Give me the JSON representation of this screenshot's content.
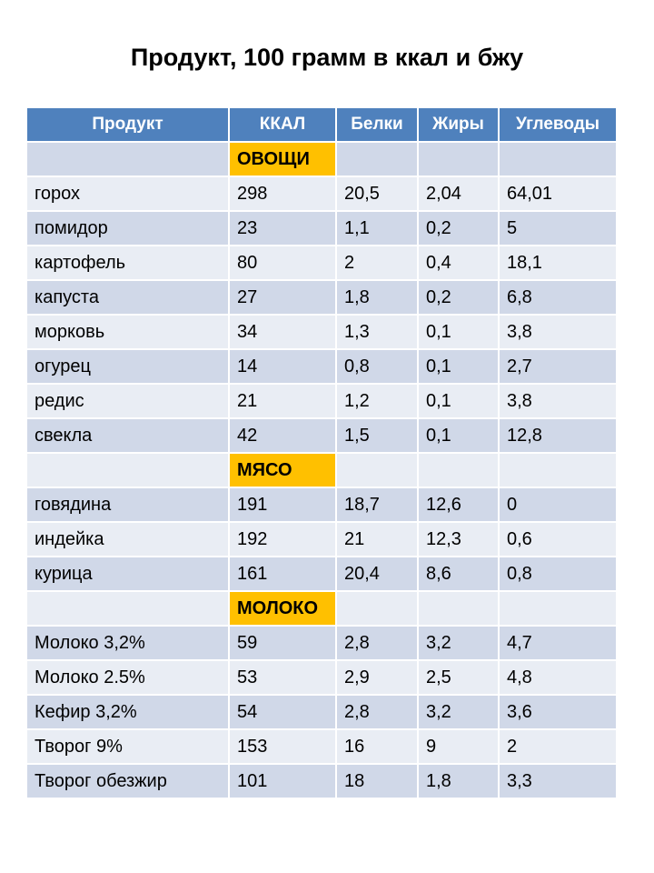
{
  "title": "Продукт, 100 грамм в ккал и бжу",
  "columns": [
    "Продукт",
    "ККАЛ",
    "Белки",
    "Жиры",
    "Углеводы"
  ],
  "colors": {
    "header_bg": "#4f81bd",
    "header_text": "#ffffff",
    "row_band_dark": "#d0d8e8",
    "row_band_light": "#e9edf4",
    "section_highlight": "#ffc000"
  },
  "sections": [
    {
      "label": "ОВОЩИ",
      "rows": [
        [
          "горох",
          "298",
          "20,5",
          "2,04",
          "64,01"
        ],
        [
          "помидор",
          "23",
          "1,1",
          "0,2",
          "5"
        ],
        [
          "картофель",
          "80",
          "2",
          "0,4",
          "18,1"
        ],
        [
          "капуста",
          "27",
          "1,8",
          "0,2",
          "6,8"
        ],
        [
          "морковь",
          "34",
          "1,3",
          "0,1",
          "3,8"
        ],
        [
          "огурец",
          "14",
          "0,8",
          "0,1",
          "2,7"
        ],
        [
          "редис",
          "21",
          "1,2",
          "0,1",
          "3,8"
        ],
        [
          "свекла",
          "42",
          "1,5",
          "0,1",
          "12,8"
        ]
      ]
    },
    {
      "label": "МЯСО",
      "rows": [
        [
          "говядина",
          "191",
          "18,7",
          "12,6",
          "0"
        ],
        [
          "индейка",
          "192",
          "21",
          "12,3",
          "0,6"
        ],
        [
          "курица",
          "161",
          "20,4",
          "8,6",
          "0,8"
        ]
      ]
    },
    {
      "label": "МОЛОКО",
      "rows": [
        [
          "Молоко 3,2%",
          "59",
          "2,8",
          "3,2",
          "4,7"
        ],
        [
          "Молоко 2.5%",
          "53",
          "2,9",
          "2,5",
          "4,8"
        ],
        [
          "Кефир 3,2%",
          "54",
          "2,8",
          "3,2",
          "3,6"
        ],
        [
          "Творог 9%",
          "153",
          "16",
          "9",
          "2"
        ],
        [
          "Творог обезжир",
          "101",
          "18",
          "1,8",
          "3,3"
        ]
      ]
    }
  ]
}
